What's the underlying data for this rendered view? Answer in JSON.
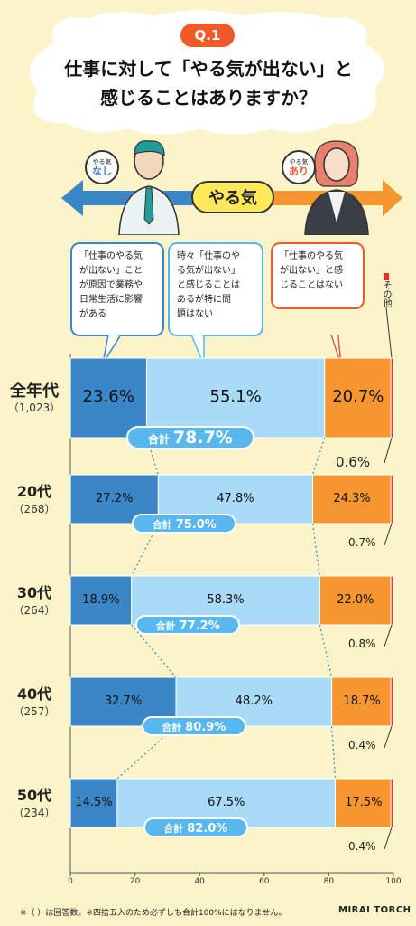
{
  "question": {
    "badge": "Q.1",
    "title_line1": "仕事に対して「やる気が出ない」と",
    "title_line2": "感じることはありますか？"
  },
  "scale": {
    "label": "やる気",
    "sign_left_small": "やる気",
    "sign_left_big": "なし",
    "sign_right_small": "やる気",
    "sign_right_big": "あり"
  },
  "captions": {
    "c1": [
      "「仕事のやる気",
      "が出ない」こと",
      "が原因で業務や",
      "日常生活に影響",
      "がある"
    ],
    "c2": [
      "時々「仕事のや",
      "る気が出ない」",
      "と感じることは",
      "あるが特に問",
      "題はない"
    ],
    "c3": [
      "「仕事のやる気",
      "が出ない」と感",
      "じることはない"
    ],
    "other": "その他"
  },
  "colors": {
    "affected": "#3b86c6",
    "sometimes": "#a9daf8",
    "never": "#f7952e",
    "other": "#e8312a",
    "sum": "#58b7ef"
  },
  "sum_label": "合計",
  "groups": [
    {
      "name": "全年代",
      "count": "（1,023）",
      "v1": "23.6%",
      "v2": "55.1%",
      "v3": "20.7%",
      "v4": "0.6%",
      "sum": "78.7%"
    },
    {
      "name": "20代",
      "count": "（268）",
      "v1": "27.2%",
      "v2": "47.8%",
      "v3": "24.3%",
      "v4": "0.7%",
      "sum": "75.0%"
    },
    {
      "name": "30代",
      "count": "（264）",
      "v1": "18.9%",
      "v2": "58.3%",
      "v3": "22.0%",
      "v4": "0.8%",
      "sum": "77.2%"
    },
    {
      "name": "40代",
      "count": "（257）",
      "v1": "32.7%",
      "v2": "48.2%",
      "v3": "18.7%",
      "v4": "0.4%",
      "sum": "80.9%"
    },
    {
      "name": "50代",
      "count": "（234）",
      "v1": "14.5%",
      "v2": "67.5%",
      "v3": "17.5%",
      "v4": "0.4%",
      "sum": "82.0%"
    }
  ],
  "chart_data": {
    "type": "bar",
    "orientation": "horizontal",
    "stacked": true,
    "categories": [
      "全年代 (1,023)",
      "20代 (268)",
      "30代 (264)",
      "40代 (257)",
      "50代 (234)"
    ],
    "series": [
      {
        "name": "「仕事のやる気が出ない」ことが原因で業務や日常生活に影響がある",
        "values": [
          23.6,
          27.2,
          18.9,
          32.7,
          14.5
        ]
      },
      {
        "name": "時々「仕事のやる気が出ない」と感じることはあるが特に問題はない",
        "values": [
          55.1,
          47.8,
          58.3,
          48.2,
          67.5
        ]
      },
      {
        "name": "「仕事のやる気が出ない」と感じることはない",
        "values": [
          20.7,
          24.3,
          22.0,
          18.7,
          17.5
        ]
      },
      {
        "name": "その他",
        "values": [
          0.6,
          0.7,
          0.8,
          0.4,
          0.4
        ]
      }
    ],
    "totals_first_two": [
      78.7,
      75.0,
      77.2,
      80.9,
      82.0
    ],
    "xlim": [
      0,
      100
    ],
    "xticks": [
      "0",
      "20",
      "40",
      "60",
      "80",
      "100"
    ]
  },
  "footnote": "※（ ）は回答数。※四捨五入のため必ずしも合計100%にはなりません。",
  "logo": "MIRAI TORCH"
}
